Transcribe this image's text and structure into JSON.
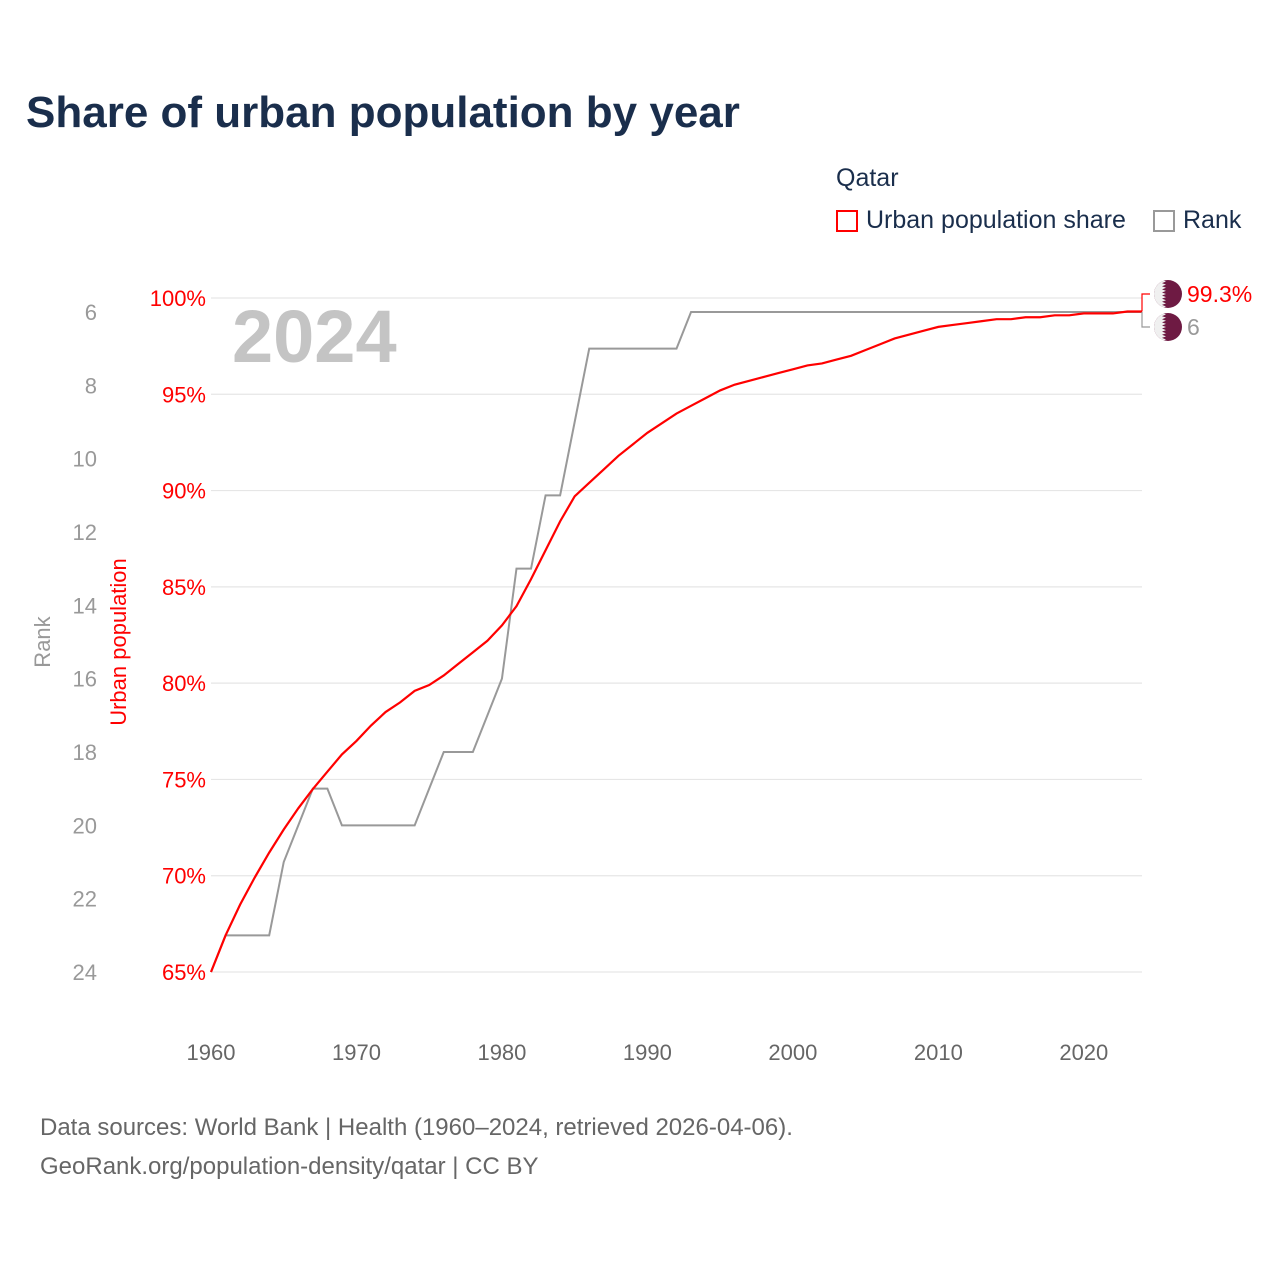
{
  "chart_data": {
    "type": "line",
    "title": "Share of urban population by year",
    "legend_title": "Qatar",
    "legend": [
      "Urban population share",
      "Rank"
    ],
    "legend_placement": "top-right",
    "year_label": "2024",
    "xlabel": "",
    "ylabel_left": "Rank",
    "ylabel_right": "Urban population",
    "xlim": [
      1960,
      2024
    ],
    "x_ticks": [
      1960,
      1970,
      1980,
      1990,
      2000,
      2010,
      2020
    ],
    "y_urban_lim": [
      65,
      100
    ],
    "y_urban_ticks": [
      "65%",
      "70%",
      "75%",
      "80%",
      "85%",
      "90%",
      "95%",
      "100%"
    ],
    "y_rank_lim": [
      24,
      6
    ],
    "y_rank_ticks": [
      "6",
      "8",
      "10",
      "12",
      "14",
      "16",
      "18",
      "20",
      "22",
      "24"
    ],
    "colors": {
      "urban": "#ff0000",
      "rank": "#999999",
      "flag": "#6e1a43"
    },
    "series": [
      {
        "name": "Urban population share",
        "unit": "%",
        "points": [
          [
            1960,
            65.0
          ],
          [
            1961,
            66.9
          ],
          [
            1962,
            68.5
          ],
          [
            1963,
            69.9
          ],
          [
            1964,
            71.2
          ],
          [
            1965,
            72.4
          ],
          [
            1966,
            73.5
          ],
          [
            1967,
            74.5
          ],
          [
            1968,
            75.4
          ],
          [
            1969,
            76.3
          ],
          [
            1970,
            77.0
          ],
          [
            1971,
            77.8
          ],
          [
            1972,
            78.5
          ],
          [
            1973,
            79.0
          ],
          [
            1974,
            79.6
          ],
          [
            1975,
            79.9
          ],
          [
            1976,
            80.4
          ],
          [
            1977,
            81.0
          ],
          [
            1978,
            81.6
          ],
          [
            1979,
            82.2
          ],
          [
            1980,
            83.0
          ],
          [
            1981,
            84.0
          ],
          [
            1982,
            85.4
          ],
          [
            1983,
            86.9
          ],
          [
            1984,
            88.4
          ],
          [
            1985,
            89.7
          ],
          [
            1986,
            90.4
          ],
          [
            1987,
            91.1
          ],
          [
            1988,
            91.8
          ],
          [
            1989,
            92.4
          ],
          [
            1990,
            93.0
          ],
          [
            1991,
            93.5
          ],
          [
            1992,
            94.0
          ],
          [
            1993,
            94.4
          ],
          [
            1994,
            94.8
          ],
          [
            1995,
            95.2
          ],
          [
            1996,
            95.5
          ],
          [
            1997,
            95.7
          ],
          [
            1998,
            95.9
          ],
          [
            1999,
            96.1
          ],
          [
            2000,
            96.3
          ],
          [
            2001,
            96.5
          ],
          [
            2002,
            96.6
          ],
          [
            2003,
            96.8
          ],
          [
            2004,
            97.0
          ],
          [
            2005,
            97.3
          ],
          [
            2006,
            97.6
          ],
          [
            2007,
            97.9
          ],
          [
            2008,
            98.1
          ],
          [
            2009,
            98.3
          ],
          [
            2010,
            98.5
          ],
          [
            2011,
            98.6
          ],
          [
            2012,
            98.7
          ],
          [
            2013,
            98.8
          ],
          [
            2014,
            98.9
          ],
          [
            2015,
            98.9
          ],
          [
            2016,
            99.0
          ],
          [
            2017,
            99.0
          ],
          [
            2018,
            99.1
          ],
          [
            2019,
            99.1
          ],
          [
            2020,
            99.2
          ],
          [
            2021,
            99.2
          ],
          [
            2022,
            99.2
          ],
          [
            2023,
            99.3
          ],
          [
            2024,
            99.3
          ]
        ],
        "last_label": "99.3%"
      },
      {
        "name": "Rank",
        "points": [
          [
            1960,
            24
          ],
          [
            1961,
            23
          ],
          [
            1962,
            23
          ],
          [
            1963,
            23
          ],
          [
            1964,
            23
          ],
          [
            1965,
            21
          ],
          [
            1966,
            20
          ],
          [
            1967,
            19
          ],
          [
            1968,
            19
          ],
          [
            1969,
            20
          ],
          [
            1970,
            20
          ],
          [
            1971,
            20
          ],
          [
            1972,
            20
          ],
          [
            1973,
            20
          ],
          [
            1974,
            20
          ],
          [
            1975,
            19
          ],
          [
            1976,
            18
          ],
          [
            1977,
            18
          ],
          [
            1978,
            18
          ],
          [
            1979,
            17
          ],
          [
            1980,
            16
          ],
          [
            1981,
            13
          ],
          [
            1982,
            13
          ],
          [
            1983,
            11
          ],
          [
            1984,
            11
          ],
          [
            1985,
            9
          ],
          [
            1986,
            7
          ],
          [
            1987,
            7
          ],
          [
            1988,
            7
          ],
          [
            1989,
            7
          ],
          [
            1990,
            7
          ],
          [
            1991,
            7
          ],
          [
            1992,
            7
          ],
          [
            1993,
            6
          ],
          [
            2024,
            6
          ]
        ],
        "last_label": "6"
      }
    ]
  },
  "source": {
    "line1": "Data sources: World Bank | Health (1960–2024, retrieved 2026-04-06).",
    "line2": "GeoRank.org/population-density/qatar | CC BY"
  }
}
